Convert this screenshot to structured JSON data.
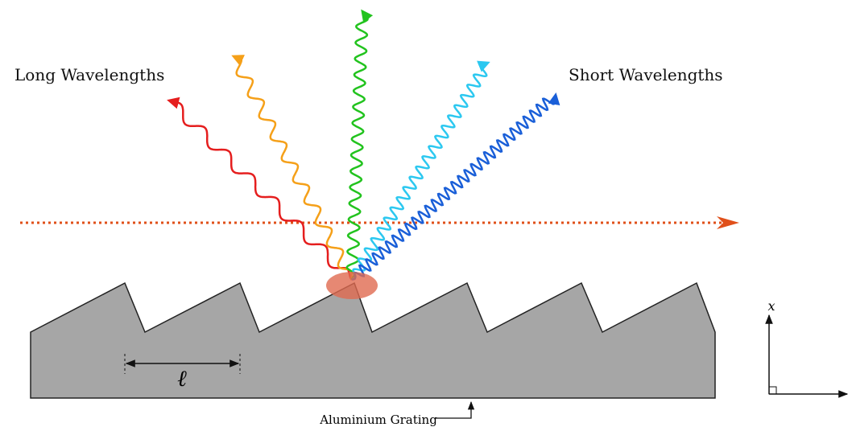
{
  "labels": {
    "long": "Long Wavelengths",
    "short": "Short Wavelengths",
    "period": "ℓ",
    "grating": "Aluminium Grating",
    "axis": "x"
  }
}
